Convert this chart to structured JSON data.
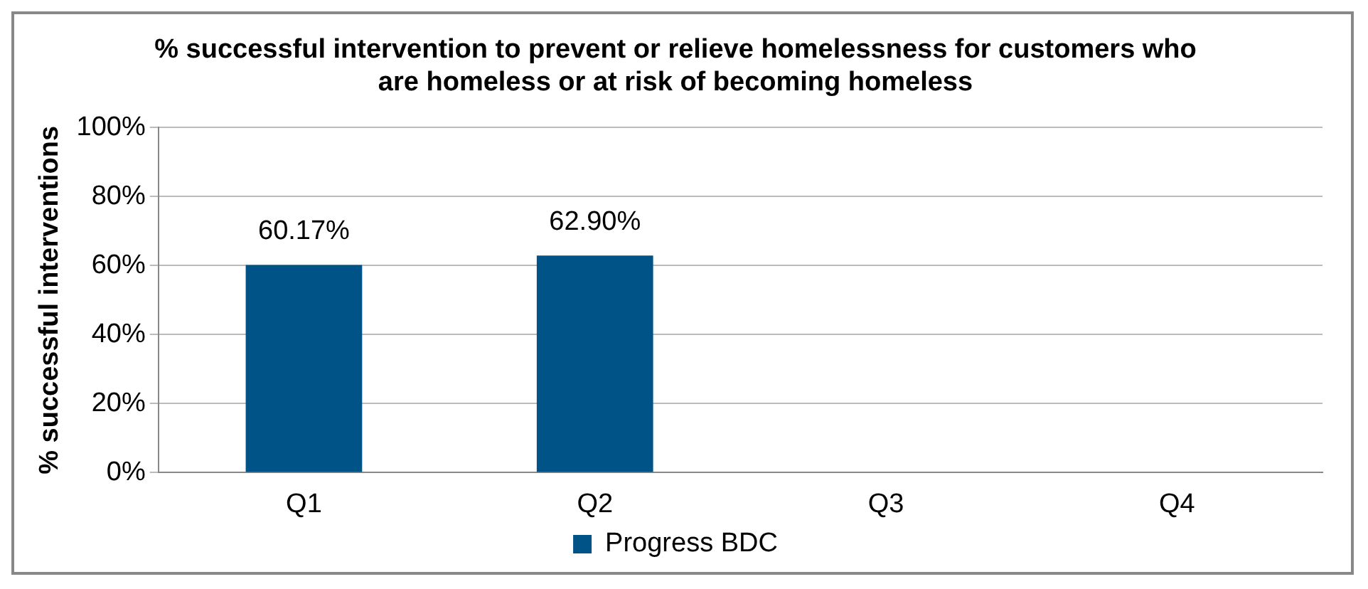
{
  "chart_data": {
    "type": "bar",
    "title": "% successful intervention to prevent or relieve homelessness for customers who are homeless or at risk of becoming homeless",
    "ylabel": "% successful interventions",
    "categories": [
      "Q1",
      "Q2",
      "Q3",
      "Q4"
    ],
    "series": [
      {
        "name": "Progress BDC",
        "color": "#005386",
        "values": [
          60.17,
          62.9,
          null,
          null
        ],
        "value_labels": [
          "60.17%",
          "62.90%",
          null,
          null
        ]
      }
    ],
    "ylim": [
      0,
      100
    ],
    "yticks": [
      {
        "value": 0,
        "label": "0%"
      },
      {
        "value": 20,
        "label": "20%"
      },
      {
        "value": 40,
        "label": "40%"
      },
      {
        "value": 60,
        "label": "60%"
      },
      {
        "value": 80,
        "label": "80%"
      },
      {
        "value": 100,
        "label": "100%"
      }
    ],
    "grid": "y",
    "legend": "bottom"
  }
}
